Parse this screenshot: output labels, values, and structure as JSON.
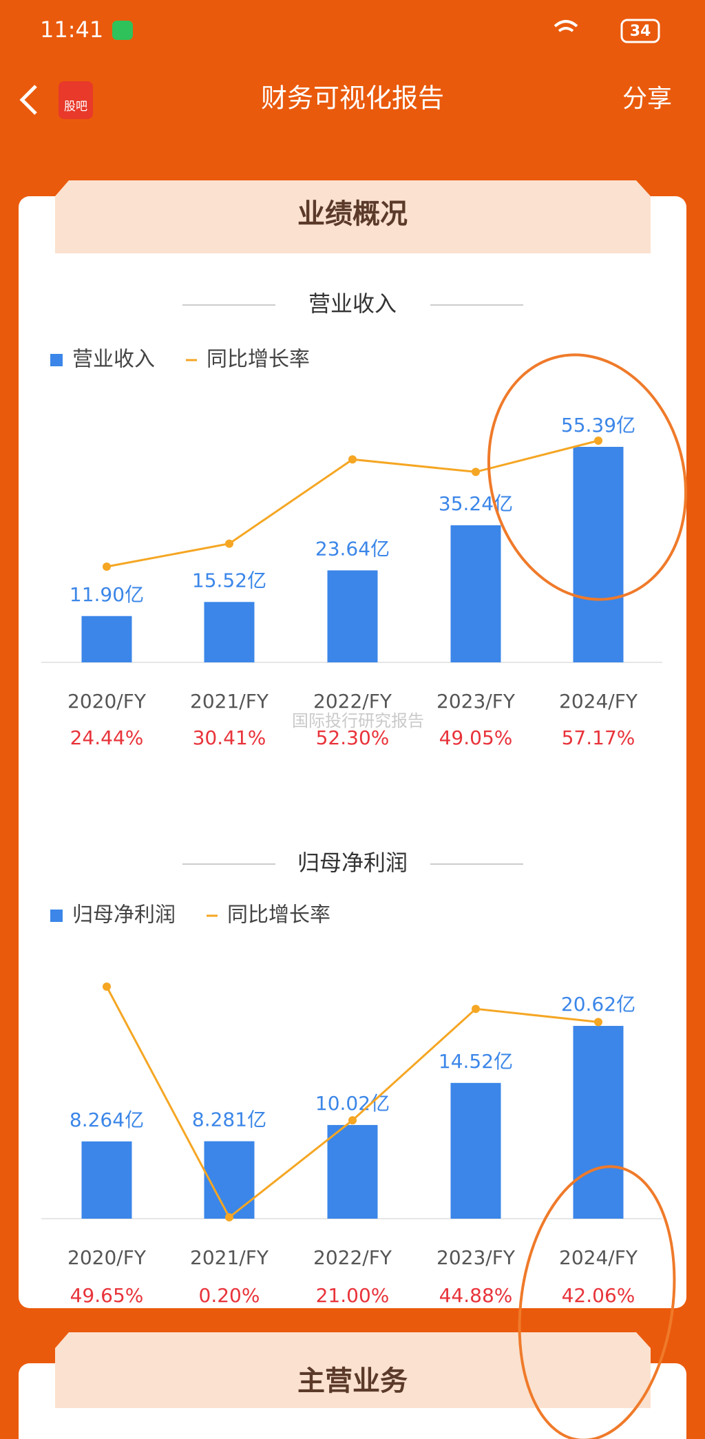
{
  "status_bar": {
    "time": "11:41",
    "battery": "34"
  },
  "header": {
    "logo": "股吧",
    "title": "财务可视化报告",
    "share": "分享"
  },
  "section_title": "业绩概况",
  "charts": [
    {
      "type": "bar-line",
      "title": "营业收入",
      "categories": [
        "2020/FY",
        "2021/FY",
        "2022/FY",
        "2023/FY",
        "2024/FY"
      ],
      "series": [
        {
          "name": "营业收入",
          "color": "#3b86e8",
          "values": [
            11.9,
            15.52,
            23.64,
            35.24,
            55.39
          ],
          "value_labels": [
            "11.90亿",
            "15.52亿",
            "23.64亿",
            "35.24亿",
            "55.39亿"
          ]
        },
        {
          "name": "同比增长率",
          "color": "#f5a623",
          "values": [
            24.44,
            30.41,
            52.3,
            49.05,
            57.17
          ],
          "value_labels": [
            "24.44%",
            "30.41%",
            "52.30%",
            "49.05%",
            "57.17%"
          ]
        }
      ]
    },
    {
      "type": "bar-line",
      "title": "归母净利润",
      "categories": [
        "2020/FY",
        "2021/FY",
        "2022/FY",
        "2023/FY",
        "2024/FY"
      ],
      "series": [
        {
          "name": "归母净利润",
          "color": "#3b86e8",
          "values": [
            8.264,
            8.281,
            10.02,
            14.52,
            20.62
          ],
          "value_labels": [
            "8.264亿",
            "8.281亿",
            "10.02亿",
            "14.52亿",
            "20.62亿"
          ]
        },
        {
          "name": "同比增长率",
          "color": "#f5a623",
          "values": [
            49.65,
            0.2,
            21.0,
            44.88,
            42.06
          ],
          "value_labels": [
            "49.65%",
            "0.20%",
            "21.00%",
            "44.88%",
            "42.06%"
          ]
        }
      ]
    }
  ],
  "watermark": "国际投行研究报告",
  "next_section_title": "主营业务"
}
